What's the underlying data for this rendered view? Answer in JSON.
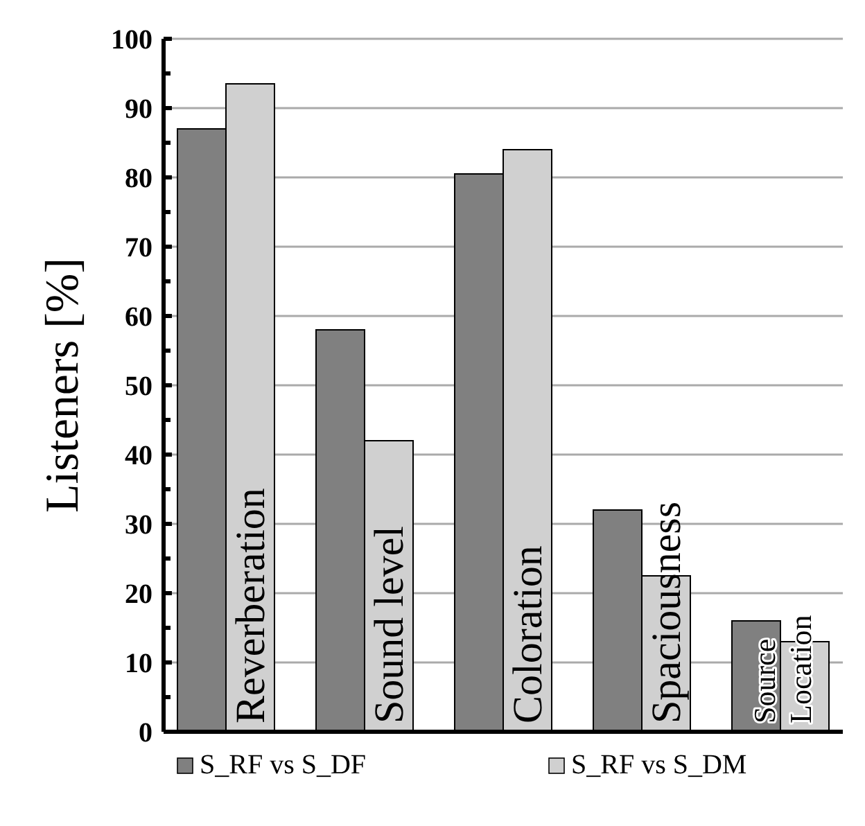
{
  "chart_data": {
    "type": "bar",
    "ylabel": "Listeners [%]",
    "categories": [
      "Reverberation",
      "Sound level",
      "Coloration",
      "Spaciousness",
      "Source Location"
    ],
    "series": [
      {
        "name": "S_RF vs S_DF",
        "color": "#808080",
        "values": [
          87,
          58,
          80.5,
          32,
          16
        ]
      },
      {
        "name": "S_RF vs S_DM",
        "color": "#d0d0d0",
        "values": [
          93.5,
          42,
          84,
          22.5,
          13
        ]
      }
    ],
    "ylim": [
      0,
      100
    ],
    "yticks": [
      0,
      10,
      20,
      30,
      40,
      50,
      60,
      70,
      80,
      90,
      100
    ],
    "grid": "y",
    "legend": "bottom"
  }
}
